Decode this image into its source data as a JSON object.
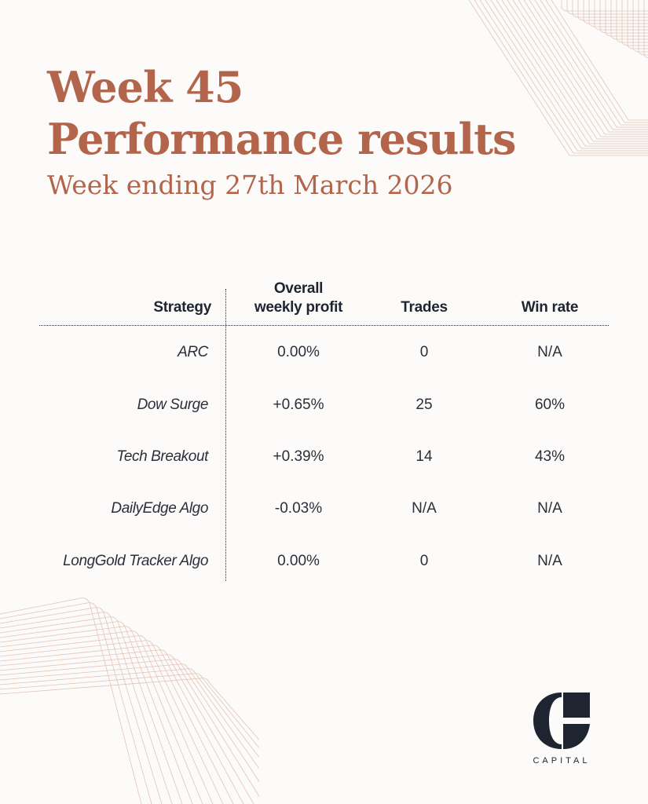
{
  "title": {
    "line1": "Week 45",
    "line2": "Performance results",
    "subtitle": "Week ending 27th March 2026"
  },
  "table": {
    "headers": {
      "strategy": "Strategy",
      "profit_line1": "Overall",
      "profit_line2": "weekly profit",
      "trades": "Trades",
      "win_rate": "Win rate"
    },
    "rows": [
      {
        "strategy": "ARC",
        "profit": "0.00%",
        "trades": "0",
        "win_rate": "N/A"
      },
      {
        "strategy": "Dow Surge",
        "profit": "+0.65%",
        "trades": "25",
        "win_rate": "60%"
      },
      {
        "strategy": "Tech Breakout",
        "profit": "+0.39%",
        "trades": "14",
        "win_rate": "43%"
      },
      {
        "strategy": "DailyEdge Algo",
        "profit": "-0.03%",
        "trades": "N/A",
        "win_rate": "N/A"
      },
      {
        "strategy": "LongGold Tracker Algo",
        "profit": "0.00%",
        "trades": "0",
        "win_rate": "N/A"
      }
    ]
  },
  "logo": {
    "icon": "g-capital-logo-icon",
    "text": "CAPITAL"
  },
  "colors": {
    "accent": "#b2654a",
    "text": "#1e2430",
    "background": "#fcfbfa",
    "deco_lines": "#e2c3b6"
  }
}
